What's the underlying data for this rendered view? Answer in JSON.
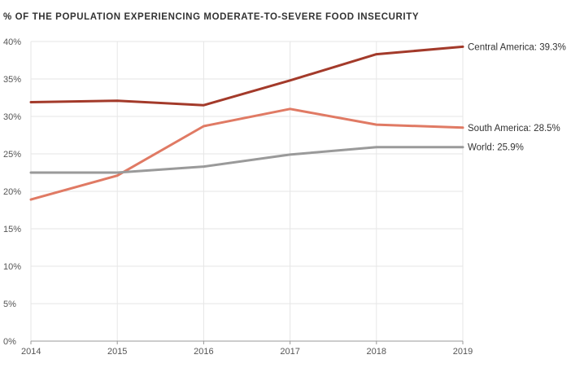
{
  "chart_data": {
    "type": "line",
    "title": "% OF THE POPULATION EXPERIENCING MODERATE-TO-SEVERE FOOD INSECURITY",
    "xlabel": "",
    "ylabel": "",
    "x": [
      "2014",
      "2015",
      "2016",
      "2017",
      "2018",
      "2019"
    ],
    "ylim": [
      0,
      40
    ],
    "yticks": [
      "0%",
      "5%",
      "10%",
      "15%",
      "20%",
      "25%",
      "30%",
      "35%",
      "40%"
    ],
    "ytick_values": [
      0,
      5,
      10,
      15,
      20,
      25,
      30,
      35,
      40
    ],
    "grid": true,
    "legend": "end-of-line labels",
    "series": [
      {
        "name": "Central America",
        "label": "Central America: 39.3%",
        "color": "#a33a2a",
        "values": [
          31.9,
          32.1,
          31.5,
          34.8,
          38.3,
          39.3
        ]
      },
      {
        "name": "South America",
        "label": "South America: 28.5%",
        "color": "#e07a64",
        "values": [
          18.9,
          22.1,
          28.7,
          31.0,
          28.9,
          28.5
        ]
      },
      {
        "name": "World",
        "label": "World: 25.9%",
        "color": "#9a9a9a",
        "values": [
          22.5,
          22.5,
          23.3,
          24.9,
          25.9,
          25.9
        ]
      }
    ]
  }
}
